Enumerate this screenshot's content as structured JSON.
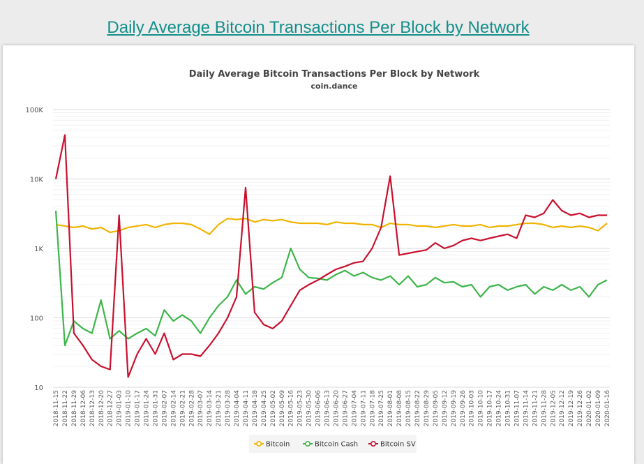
{
  "page": {
    "title": "Daily Average Bitcoin Transactions Per Block by Network"
  },
  "chart_data": {
    "type": "line",
    "title": "Daily Average Bitcoin Transactions Per Block by Network",
    "subtitle": "coin.dance",
    "xlabel": "",
    "ylabel": "",
    "yscale": "log",
    "ylim": [
      10,
      100000
    ],
    "yticks": [
      {
        "v": 10,
        "label": "10"
      },
      {
        "v": 100,
        "label": "100"
      },
      {
        "v": 1000,
        "label": "1K"
      },
      {
        "v": 10000,
        "label": "10K"
      },
      {
        "v": 100000,
        "label": "100K"
      }
    ],
    "grid": true,
    "legend_position": "bottom-center",
    "categories": [
      "2018-11-15",
      "2018-11-22",
      "2018-11-29",
      "2018-12-06",
      "2018-12-13",
      "2018-12-20",
      "2018-12-27",
      "2019-01-03",
      "2019-01-10",
      "2019-01-17",
      "2019-01-24",
      "2019-01-31",
      "2019-02-07",
      "2019-02-14",
      "2019-02-21",
      "2019-02-28",
      "2019-03-07",
      "2019-03-14",
      "2019-03-21",
      "2019-03-28",
      "2019-04-04",
      "2019-04-11",
      "2019-04-18",
      "2019-04-25",
      "2019-05-02",
      "2019-05-09",
      "2019-05-16",
      "2019-05-23",
      "2019-05-30",
      "2019-06-06",
      "2019-06-13",
      "2019-06-20",
      "2019-06-27",
      "2019-07-04",
      "2019-07-11",
      "2019-07-18",
      "2019-07-25",
      "2019-08-01",
      "2019-08-08",
      "2019-08-15",
      "2019-08-22",
      "2019-08-29",
      "2019-09-05",
      "2019-09-12",
      "2019-09-19",
      "2019-09-26",
      "2019-10-03",
      "2019-10-10",
      "2019-10-17",
      "2019-10-24",
      "2019-10-31",
      "2019-11-07",
      "2019-11-14",
      "2019-11-21",
      "2019-11-28",
      "2019-12-05",
      "2019-12-12",
      "2019-12-19",
      "2019-12-26",
      "2020-01-02",
      "2020-01-09",
      "2020-01-16"
    ],
    "series": [
      {
        "name": "Bitcoin",
        "color": "#f0b400",
        "values": [
          2200,
          2100,
          2000,
          2100,
          1900,
          2000,
          1700,
          1800,
          2000,
          2100,
          2200,
          2000,
          2200,
          2300,
          2300,
          2200,
          1900,
          1600,
          2200,
          2700,
          2600,
          2700,
          2400,
          2600,
          2500,
          2600,
          2400,
          2300,
          2300,
          2300,
          2200,
          2400,
          2300,
          2300,
          2200,
          2200,
          2000,
          2300,
          2200,
          2200,
          2100,
          2100,
          2000,
          2100,
          2200,
          2100,
          2100,
          2200,
          2000,
          2100,
          2100,
          2200,
          2300,
          2300,
          2200,
          2000,
          2100,
          2000,
          2100,
          2000,
          1800,
          2300
        ]
      },
      {
        "name": "Bitcoin Cash",
        "color": "#3db54a",
        "values": [
          3500,
          40,
          90,
          70,
          60,
          180,
          50,
          65,
          50,
          60,
          70,
          55,
          130,
          90,
          110,
          90,
          60,
          100,
          150,
          200,
          350,
          220,
          280,
          260,
          320,
          380,
          1000,
          500,
          380,
          370,
          350,
          420,
          480,
          400,
          450,
          380,
          350,
          400,
          300,
          400,
          280,
          300,
          380,
          320,
          330,
          280,
          300,
          200,
          280,
          300,
          250,
          280,
          300,
          220,
          280,
          250,
          300,
          250,
          280,
          200,
          300,
          350
        ]
      },
      {
        "name": "Bitcoin SV",
        "color": "#c8102e",
        "values": [
          10000,
          43000,
          60,
          40,
          25,
          20,
          18,
          3000,
          14,
          30,
          50,
          30,
          60,
          25,
          30,
          30,
          28,
          40,
          60,
          100,
          200,
          7500,
          120,
          80,
          70,
          90,
          150,
          250,
          300,
          350,
          420,
          500,
          550,
          620,
          650,
          1000,
          2000,
          11000,
          800,
          850,
          900,
          950,
          1200,
          1000,
          1100,
          1300,
          1400,
          1300,
          1400,
          1500,
          1600,
          1400,
          3000,
          2800,
          3200,
          5000,
          3500,
          3000,
          3200,
          2800,
          3000,
          3000
        ]
      }
    ]
  }
}
